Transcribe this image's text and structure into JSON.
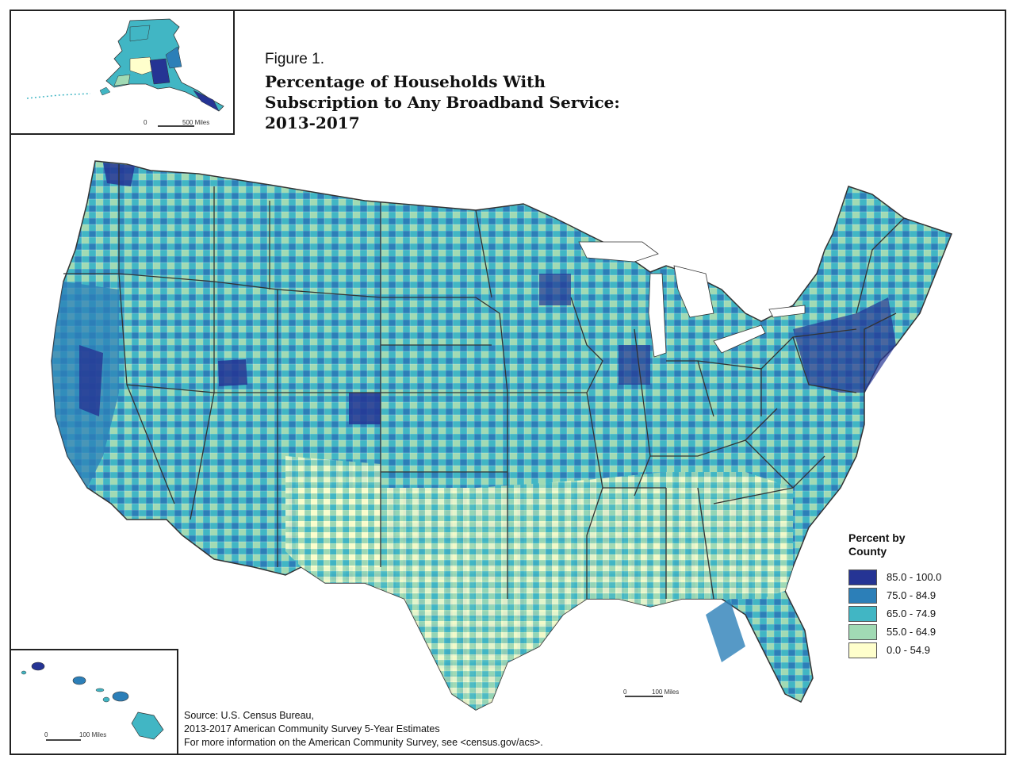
{
  "figure_label": "Figure 1.",
  "title_lines": [
    "Percentage of Households With",
    "Subscription to Any Broadband Service:",
    "2013-2017"
  ],
  "legend": {
    "title_lines": [
      "Percent by",
      "County"
    ],
    "classes": [
      {
        "label": "85.0 - 100.0",
        "color": "#253494"
      },
      {
        "label": "75.0 - 84.9",
        "color": "#2c7fb8"
      },
      {
        "label": "65.0 - 74.9",
        "color": "#41b6c4"
      },
      {
        "label": "55.0 - 64.9",
        "color": "#a1dab4"
      },
      {
        "label": "0.0 - 54.9",
        "color": "#ffffcc"
      }
    ]
  },
  "scale_bars": {
    "alaska": {
      "zero": "0",
      "distance": "500 Miles"
    },
    "main": {
      "zero": "0",
      "distance": "100 Miles"
    },
    "hawaii": {
      "zero": "0",
      "distance": "100 Miles"
    }
  },
  "source_lines": [
    "Source: U.S. Census Bureau,",
    "2013-2017 American Community Survey 5-Year Estimates",
    "For more information on the American Community Survey, see <census.gov/acs>."
  ],
  "border_color": "#333333"
}
